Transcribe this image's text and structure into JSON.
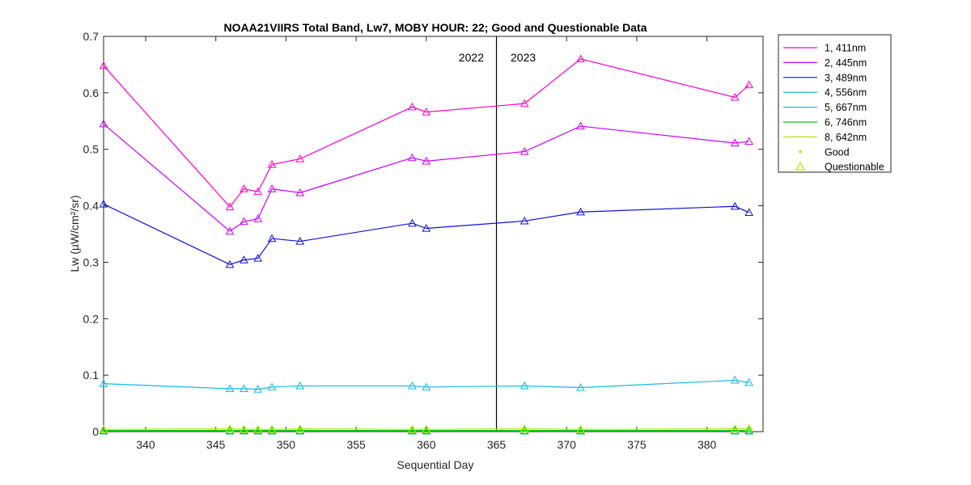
{
  "chart_data": {
    "type": "line",
    "title": "NOAA21VIIRS Total Band,  Lw7, MOBY HOUR: 22;  Good and Questionable Data",
    "xlabel": "Sequential Day",
    "ylabel": "Lw (µW/cm²/sr)",
    "xlim": [
      337,
      384
    ],
    "ylim": [
      0,
      0.7
    ],
    "xticks": [
      340,
      345,
      350,
      355,
      360,
      365,
      370,
      375,
      380
    ],
    "yticks": [
      0,
      0.1,
      0.2,
      0.3,
      0.4,
      0.5,
      0.6,
      0.7
    ],
    "ytick_labels": [
      "0",
      "0.1",
      "0.2",
      "0.3",
      "0.4",
      "0.5",
      "0.6",
      "0.7"
    ],
    "grid": false,
    "legend_position": "outside-right",
    "x": [
      337,
      346,
      347,
      348,
      349,
      351,
      359,
      360,
      367,
      371,
      382,
      383
    ],
    "series": [
      {
        "name": "1, 411nm",
        "color": "#ff00c8",
        "values": [
          0.648,
          0.398,
          0.43,
          0.425,
          0.473,
          0.483,
          0.575,
          0.566,
          0.581,
          0.66,
          0.592,
          0.614
        ]
      },
      {
        "name": "2, 445nm",
        "color": "#c800ff",
        "values": [
          0.545,
          0.355,
          0.372,
          0.377,
          0.43,
          0.423,
          0.485,
          0.479,
          0.496,
          0.541,
          0.511,
          0.514
        ]
      },
      {
        "name": "3, 489nm",
        "color": "#1010d8",
        "values": [
          0.403,
          0.296,
          0.304,
          0.307,
          0.342,
          0.337,
          0.369,
          0.36,
          0.373,
          0.389,
          0.399,
          0.388
        ]
      },
      {
        "name": "4, 556nm",
        "color": "#00b4b4",
        "values": [
          0.001,
          0.001,
          0.001,
          0.001,
          0.001,
          0.001,
          0.001,
          0.001,
          0.001,
          0.001,
          0.001,
          0.001
        ]
      },
      {
        "name": "5, 667nm",
        "color": "#14b8e8",
        "values": [
          0.085,
          0.076,
          0.076,
          0.075,
          0.079,
          0.081,
          0.081,
          0.079,
          0.081,
          0.078,
          0.091,
          0.087
        ]
      },
      {
        "name": "6, 746nm",
        "color": "#00c800",
        "values": [
          0.002,
          0.002,
          0.002,
          0.002,
          0.002,
          0.002,
          0.002,
          0.002,
          0.002,
          0.002,
          0.002,
          0.002
        ]
      },
      {
        "name": "8, 642nm",
        "color": "#b4e600",
        "values": [
          0.004,
          0.005,
          0.004,
          0.004,
          0.004,
          0.005,
          0.004,
          0.004,
          0.005,
          0.004,
          0.005,
          0.006
        ]
      }
    ],
    "marker_legend": [
      {
        "name": "Good",
        "marker": "dot",
        "color": "#b4e600"
      },
      {
        "name": "Questionable",
        "marker": "triangle",
        "color": "#b4e600"
      }
    ],
    "vline": {
      "x": 365,
      "left_label": "2022",
      "right_label": "2023",
      "color": "#000000"
    }
  }
}
